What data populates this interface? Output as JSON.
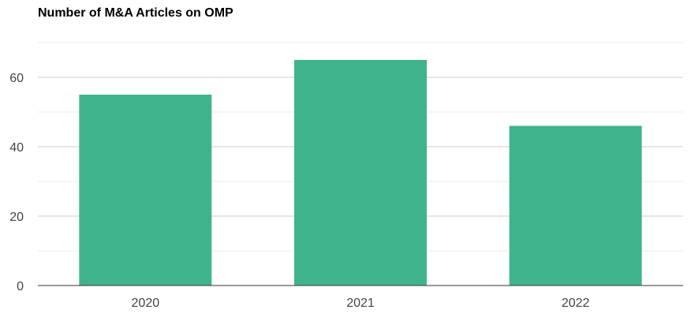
{
  "chart_data": {
    "type": "bar",
    "title": "Number of M&A Articles on OMP",
    "xlabel": "",
    "ylabel": "",
    "categories": [
      "2020",
      "2021",
      "2022"
    ],
    "values": [
      55,
      65,
      46
    ],
    "ylim": [
      0,
      70
    ],
    "yticks": [
      0,
      20,
      40,
      60
    ],
    "minor_yticks": [
      10,
      30,
      50,
      70
    ],
    "grid": true,
    "legend": "none",
    "colors": {
      "bar": "#3fb48c",
      "major_grid": "#cccccc",
      "minor_grid": "#ebebeb",
      "axis": "#333333",
      "tick_text": "#444444",
      "title": "#000000"
    }
  }
}
